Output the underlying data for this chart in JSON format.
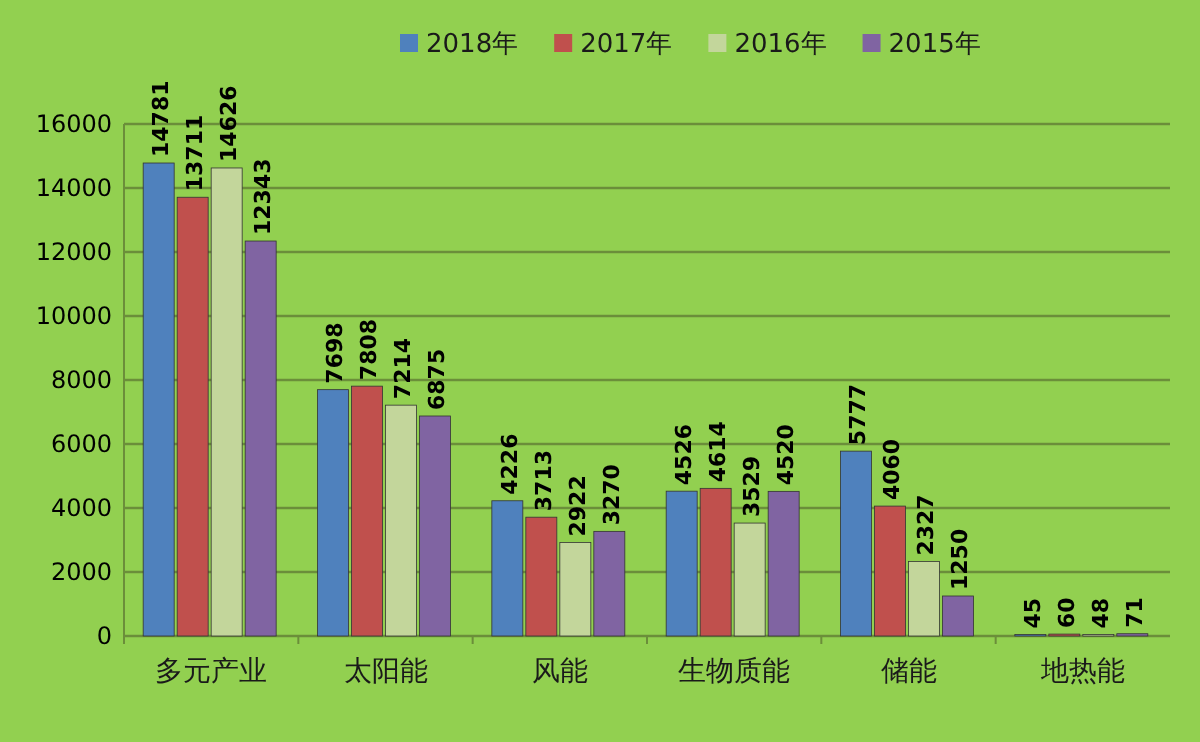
{
  "chart_data": {
    "type": "bar",
    "categories": [
      "多元产业",
      "太阳能",
      "风能",
      "生物质能",
      "储能",
      "地热能"
    ],
    "series": [
      {
        "name": "2018年",
        "color": "#4f81bd",
        "values": [
          14781,
          7698,
          4226,
          4526,
          5777,
          45
        ]
      },
      {
        "name": "2017年",
        "color": "#c0504d",
        "values": [
          13711,
          7808,
          3713,
          4614,
          4060,
          60
        ]
      },
      {
        "name": "2016年",
        "color": "#c3d69b",
        "values": [
          14626,
          7214,
          2922,
          3529,
          2327,
          48
        ]
      },
      {
        "name": "2015年",
        "color": "#8064a2",
        "values": [
          12343,
          6875,
          3270,
          4520,
          1250,
          71
        ]
      }
    ],
    "ylim": [
      0,
      16000
    ],
    "yticks": [
      0,
      2000,
      4000,
      6000,
      8000,
      10000,
      12000,
      14000,
      16000
    ],
    "grid": "y",
    "legend": "top",
    "data_labels": true
  }
}
